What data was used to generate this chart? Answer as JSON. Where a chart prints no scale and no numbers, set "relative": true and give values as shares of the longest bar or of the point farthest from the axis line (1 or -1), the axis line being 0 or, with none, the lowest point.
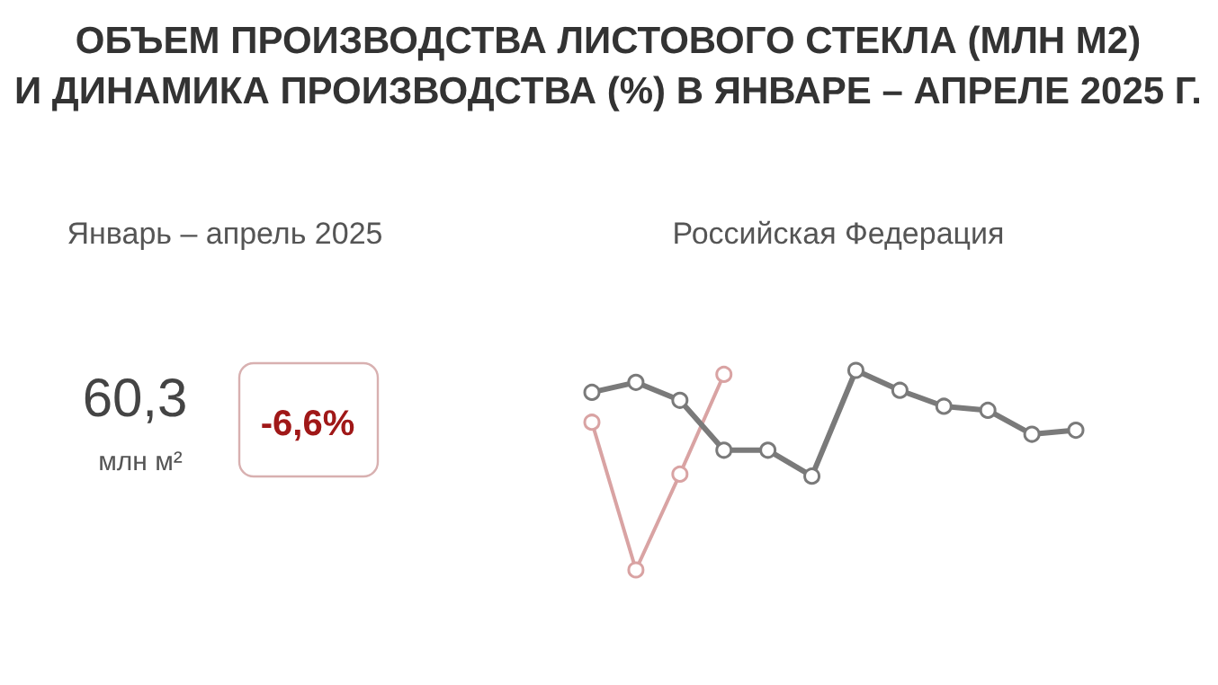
{
  "chart_data": {
    "type": "line",
    "title": "ОБЪЕМ ПРОИЗВОДСТВА ЛИСТОВОГО СТЕКЛА (МЛН М2) И ДИНАМИКА ПРОИЗВОДСТВА (%) В ЯНВАРЕ – АПРЕЛЕ 2025 Г.",
    "subtitle": "Российская Федерация",
    "annotations": [
      "Январь – апрель 2025",
      "60,3",
      "млн м²",
      "-6,6%"
    ],
    "relative": true,
    "marker": "circle",
    "grid": false,
    "categories": [
      null,
      null,
      null,
      null,
      null,
      null,
      null,
      null,
      null,
      null,
      null,
      null
    ],
    "series": [
      {
        "color": "#7a7a7a",
        "values": [
          0.89,
          0.94,
          0.85,
          0.6,
          0.6,
          0.47,
          1,
          0.9,
          0.82,
          0.8,
          0.68,
          0.7
        ]
      },
      {
        "color": "#d9a3a3",
        "values": [
          0.74,
          0,
          0.48,
          0.98,
          null,
          null,
          null,
          null,
          null,
          null,
          null,
          null
        ]
      }
    ]
  }
}
